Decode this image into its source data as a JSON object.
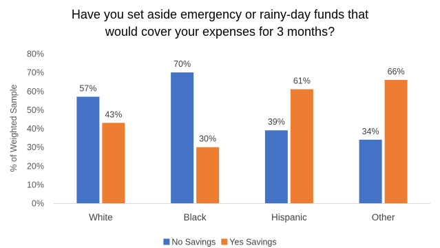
{
  "chart_data": {
    "type": "bar",
    "title_lines": [
      "Have you set aside emergency or rainy-day funds that",
      "would cover your expenses for 3 months?"
    ],
    "ylabel": "% of Weighted Sample",
    "xlabel": "",
    "categories": [
      "White",
      "Black",
      "Hispanic",
      "Other"
    ],
    "series": [
      {
        "name": "No Savings",
        "color": "#4472C4",
        "values": [
          57,
          70,
          39,
          34
        ],
        "labels": [
          "57%",
          "70%",
          "39%",
          "34%"
        ]
      },
      {
        "name": "Yes Savings",
        "color": "#ED7D31",
        "values": [
          43,
          30,
          61,
          66
        ],
        "labels": [
          "43%",
          "30%",
          "61%",
          "66%"
        ]
      }
    ],
    "ylim": [
      0,
      80
    ],
    "yticks": [
      0,
      10,
      20,
      30,
      40,
      50,
      60,
      70,
      80
    ],
    "ytick_labels": [
      "0%",
      "10%",
      "20%",
      "30%",
      "40%",
      "50%",
      "60%",
      "70%",
      "80%"
    ],
    "grid": false,
    "legend_position": "bottom"
  }
}
